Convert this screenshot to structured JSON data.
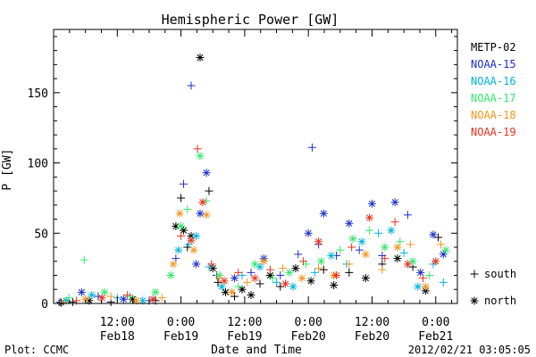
{
  "chart_data": {
    "type": "scatter",
    "title": "Hemispheric Power [GW]",
    "ylabel": "P [GW]",
    "xlabel": "Date and Time",
    "ylim": [
      0,
      195
    ],
    "xlim": [
      0,
      3.17
    ],
    "x_unit": "days from 2012-02-18 00:00 UT",
    "yticks": [
      {
        "value": 0,
        "label": "0"
      },
      {
        "value": 50,
        "label": "50"
      },
      {
        "value": 100,
        "label": "100"
      },
      {
        "value": 150,
        "label": "150"
      }
    ],
    "xticks": [
      {
        "value": 0.5,
        "label": "12:00",
        "sub": "Feb18"
      },
      {
        "value": 1.0,
        "label": "0:00",
        "sub": "Feb19"
      },
      {
        "value": 1.5,
        "label": "12:00",
        "sub": "Feb19"
      },
      {
        "value": 2.0,
        "label": "0:00",
        "sub": "Feb20"
      },
      {
        "value": 2.5,
        "label": "12:00",
        "sub": "Feb20"
      },
      {
        "value": 3.0,
        "label": "0:00",
        "sub": "Feb21"
      }
    ],
    "grid": false,
    "series": [
      {
        "name": "METP-02",
        "color": "#000000",
        "points": [
          {
            "x": 0.06,
            "y": 0.5,
            "m": "*"
          },
          {
            "x": 0.15,
            "y": 1,
            "m": "+"
          },
          {
            "x": 0.28,
            "y": 2,
            "m": "*"
          },
          {
            "x": 0.45,
            "y": 1,
            "m": "+"
          },
          {
            "x": 0.62,
            "y": 3,
            "m": "*"
          },
          {
            "x": 0.8,
            "y": 2,
            "m": "+"
          },
          {
            "x": 0.96,
            "y": 55,
            "m": "*"
          },
          {
            "x": 1.0,
            "y": 75,
            "m": "+"
          },
          {
            "x": 1.02,
            "y": 52,
            "m": "*"
          },
          {
            "x": 1.05,
            "y": 40,
            "m": "+"
          },
          {
            "x": 1.08,
            "y": 48,
            "m": "*"
          },
          {
            "x": 1.15,
            "y": 175,
            "m": "*"
          },
          {
            "x": 1.22,
            "y": 80,
            "m": "+"
          },
          {
            "x": 1.25,
            "y": 25,
            "m": "*"
          },
          {
            "x": 1.29,
            "y": 15,
            "m": "+"
          },
          {
            "x": 1.35,
            "y": 8,
            "m": "*"
          },
          {
            "x": 1.42,
            "y": 5,
            "m": "+"
          },
          {
            "x": 1.48,
            "y": 10,
            "m": "*"
          },
          {
            "x": 1.55,
            "y": 6,
            "m": "*"
          },
          {
            "x": 1.62,
            "y": 14,
            "m": "+"
          },
          {
            "x": 1.7,
            "y": 20,
            "m": "*"
          },
          {
            "x": 1.78,
            "y": 12,
            "m": "+"
          },
          {
            "x": 1.9,
            "y": 25,
            "m": "*"
          },
          {
            "x": 2.02,
            "y": 16,
            "m": "*"
          },
          {
            "x": 2.12,
            "y": 24,
            "m": "+"
          },
          {
            "x": 2.2,
            "y": 13,
            "m": "*"
          },
          {
            "x": 2.32,
            "y": 22,
            "m": "+"
          },
          {
            "x": 2.45,
            "y": 18,
            "m": "*"
          },
          {
            "x": 2.58,
            "y": 28,
            "m": "+"
          },
          {
            "x": 2.7,
            "y": 32,
            "m": "*"
          },
          {
            "x": 2.82,
            "y": 26,
            "m": "+"
          },
          {
            "x": 2.92,
            "y": 9,
            "m": "*"
          },
          {
            "x": 3.02,
            "y": 47,
            "m": "+"
          }
        ]
      },
      {
        "name": "NOAA-15",
        "color": "#1c2fcc",
        "points": [
          {
            "x": 0.05,
            "y": 1,
            "m": "+"
          },
          {
            "x": 0.22,
            "y": 8,
            "m": "*"
          },
          {
            "x": 0.35,
            "y": 5,
            "m": "+"
          },
          {
            "x": 0.55,
            "y": 3,
            "m": "*"
          },
          {
            "x": 0.75,
            "y": 2,
            "m": "+"
          },
          {
            "x": 0.96,
            "y": 32,
            "m": "+"
          },
          {
            "x": 1.02,
            "y": 85,
            "m": "+"
          },
          {
            "x": 1.08,
            "y": 155,
            "m": "+"
          },
          {
            "x": 1.12,
            "y": 28,
            "m": "*"
          },
          {
            "x": 1.15,
            "y": 64,
            "m": "*"
          },
          {
            "x": 1.2,
            "y": 93,
            "m": "*"
          },
          {
            "x": 1.28,
            "y": 20,
            "m": "+"
          },
          {
            "x": 1.42,
            "y": 18,
            "m": "*"
          },
          {
            "x": 1.55,
            "y": 22,
            "m": "+"
          },
          {
            "x": 1.65,
            "y": 32,
            "m": "*"
          },
          {
            "x": 1.78,
            "y": 20,
            "m": "+"
          },
          {
            "x": 1.92,
            "y": 35,
            "m": "+"
          },
          {
            "x": 2.0,
            "y": 50,
            "m": "*"
          },
          {
            "x": 2.03,
            "y": 111,
            "m": "+"
          },
          {
            "x": 2.08,
            "y": 42,
            "m": "+"
          },
          {
            "x": 2.12,
            "y": 64,
            "m": "*"
          },
          {
            "x": 2.22,
            "y": 34,
            "m": "+"
          },
          {
            "x": 2.32,
            "y": 57,
            "m": "*"
          },
          {
            "x": 2.4,
            "y": 38,
            "m": "+"
          },
          {
            "x": 2.5,
            "y": 71,
            "m": "*"
          },
          {
            "x": 2.58,
            "y": 34,
            "m": "+"
          },
          {
            "x": 2.68,
            "y": 72,
            "m": "*"
          },
          {
            "x": 2.78,
            "y": 63,
            "m": "+"
          },
          {
            "x": 2.88,
            "y": 22,
            "m": "*"
          },
          {
            "x": 2.98,
            "y": 49,
            "m": "*"
          },
          {
            "x": 3.06,
            "y": 35,
            "m": "*"
          }
        ]
      },
      {
        "name": "NOAA-16",
        "color": "#00b4dc",
        "points": [
          {
            "x": 0.1,
            "y": 2,
            "m": "*"
          },
          {
            "x": 0.3,
            "y": 6,
            "m": "*"
          },
          {
            "x": 0.5,
            "y": 4,
            "m": "+"
          },
          {
            "x": 0.7,
            "y": 2,
            "m": "*"
          },
          {
            "x": 0.98,
            "y": 38,
            "m": "*"
          },
          {
            "x": 1.06,
            "y": 42,
            "m": "+"
          },
          {
            "x": 1.12,
            "y": 48,
            "m": "*"
          },
          {
            "x": 1.22,
            "y": 26,
            "m": "+"
          },
          {
            "x": 1.32,
            "y": 12,
            "m": "*"
          },
          {
            "x": 1.48,
            "y": 20,
            "m": "+"
          },
          {
            "x": 1.62,
            "y": 26,
            "m": "*"
          },
          {
            "x": 1.75,
            "y": 15,
            "m": "+"
          },
          {
            "x": 1.88,
            "y": 12,
            "m": "*"
          },
          {
            "x": 2.05,
            "y": 22,
            "m": "+"
          },
          {
            "x": 2.18,
            "y": 34,
            "m": "*"
          },
          {
            "x": 2.3,
            "y": 28,
            "m": "+"
          },
          {
            "x": 2.42,
            "y": 44,
            "m": "*"
          },
          {
            "x": 2.55,
            "y": 50,
            "m": "+"
          },
          {
            "x": 2.65,
            "y": 52,
            "m": "*"
          },
          {
            "x": 2.75,
            "y": 36,
            "m": "+"
          },
          {
            "x": 2.86,
            "y": 12,
            "m": "*"
          },
          {
            "x": 2.98,
            "y": 28,
            "m": "+"
          },
          {
            "x": 3.06,
            "y": 15,
            "m": "+"
          }
        ]
      },
      {
        "name": "NOAA-17",
        "color": "#33e86a",
        "points": [
          {
            "x": 0.12,
            "y": 4,
            "m": "+"
          },
          {
            "x": 0.24,
            "y": 31,
            "m": "+"
          },
          {
            "x": 0.4,
            "y": 8,
            "m": "*"
          },
          {
            "x": 0.6,
            "y": 5,
            "m": "+"
          },
          {
            "x": 0.8,
            "y": 8,
            "m": "*"
          },
          {
            "x": 0.92,
            "y": 20,
            "m": "*"
          },
          {
            "x": 1.0,
            "y": 55,
            "m": "*"
          },
          {
            "x": 1.05,
            "y": 67,
            "m": "+"
          },
          {
            "x": 1.15,
            "y": 105,
            "m": "*"
          },
          {
            "x": 1.2,
            "y": 73,
            "m": "+"
          },
          {
            "x": 1.3,
            "y": 20,
            "m": "*"
          },
          {
            "x": 1.45,
            "y": 12,
            "m": "+"
          },
          {
            "x": 1.58,
            "y": 28,
            "m": "*"
          },
          {
            "x": 1.72,
            "y": 18,
            "m": "+"
          },
          {
            "x": 1.85,
            "y": 22,
            "m": "*"
          },
          {
            "x": 1.98,
            "y": 28,
            "m": "+"
          },
          {
            "x": 2.1,
            "y": 30,
            "m": "*"
          },
          {
            "x": 2.25,
            "y": 38,
            "m": "+"
          },
          {
            "x": 2.35,
            "y": 46,
            "m": "*"
          },
          {
            "x": 2.48,
            "y": 52,
            "m": "+"
          },
          {
            "x": 2.6,
            "y": 40,
            "m": "*"
          },
          {
            "x": 2.72,
            "y": 44,
            "m": "+"
          },
          {
            "x": 2.82,
            "y": 30,
            "m": "*"
          },
          {
            "x": 2.95,
            "y": 20,
            "m": "+"
          },
          {
            "x": 3.08,
            "y": 38,
            "m": "*"
          }
        ]
      },
      {
        "name": "NOAA-18",
        "color": "#f0961e",
        "points": [
          {
            "x": 0.08,
            "y": 1,
            "m": "+"
          },
          {
            "x": 0.25,
            "y": 3,
            "m": "*"
          },
          {
            "x": 0.45,
            "y": 5,
            "m": "+"
          },
          {
            "x": 0.65,
            "y": 2,
            "m": "*"
          },
          {
            "x": 0.85,
            "y": 4,
            "m": "+"
          },
          {
            "x": 0.94,
            "y": 28,
            "m": "*"
          },
          {
            "x": 0.99,
            "y": 64,
            "m": "*"
          },
          {
            "x": 1.1,
            "y": 38,
            "m": "*"
          },
          {
            "x": 1.2,
            "y": 63,
            "m": "*"
          },
          {
            "x": 1.3,
            "y": 18,
            "m": "+"
          },
          {
            "x": 1.4,
            "y": 8,
            "m": "*"
          },
          {
            "x": 1.52,
            "y": 15,
            "m": "+"
          },
          {
            "x": 1.65,
            "y": 30,
            "m": "*"
          },
          {
            "x": 1.8,
            "y": 25,
            "m": "+"
          },
          {
            "x": 1.95,
            "y": 18,
            "m": "*"
          },
          {
            "x": 2.08,
            "y": 25,
            "m": "+"
          },
          {
            "x": 2.2,
            "y": 20,
            "m": "*"
          },
          {
            "x": 2.32,
            "y": 28,
            "m": "+"
          },
          {
            "x": 2.45,
            "y": 35,
            "m": "*"
          },
          {
            "x": 2.58,
            "y": 24,
            "m": "+"
          },
          {
            "x": 2.7,
            "y": 40,
            "m": "*"
          },
          {
            "x": 2.8,
            "y": 42,
            "m": "+"
          },
          {
            "x": 2.92,
            "y": 12,
            "m": "*"
          },
          {
            "x": 3.04,
            "y": 42,
            "m": "+"
          }
        ]
      },
      {
        "name": "NOAA-19",
        "color": "#e8321c",
        "points": [
          {
            "x": 0.18,
            "y": 2,
            "m": "+"
          },
          {
            "x": 0.38,
            "y": 4,
            "m": "*"
          },
          {
            "x": 0.58,
            "y": 6,
            "m": "+"
          },
          {
            "x": 0.78,
            "y": 3,
            "m": "*"
          },
          {
            "x": 1.0,
            "y": 48,
            "m": "+"
          },
          {
            "x": 1.08,
            "y": 45,
            "m": "*"
          },
          {
            "x": 1.13,
            "y": 110,
            "m": "+"
          },
          {
            "x": 1.17,
            "y": 72,
            "m": "*"
          },
          {
            "x": 1.24,
            "y": 28,
            "m": "+"
          },
          {
            "x": 1.34,
            "y": 16,
            "m": "*"
          },
          {
            "x": 1.45,
            "y": 22,
            "m": "+"
          },
          {
            "x": 1.58,
            "y": 18,
            "m": "*"
          },
          {
            "x": 1.7,
            "y": 24,
            "m": "+"
          },
          {
            "x": 1.82,
            "y": 14,
            "m": "*"
          },
          {
            "x": 1.96,
            "y": 30,
            "m": "+"
          },
          {
            "x": 2.08,
            "y": 44,
            "m": "*"
          },
          {
            "x": 2.22,
            "y": 20,
            "m": "*"
          },
          {
            "x": 2.34,
            "y": 40,
            "m": "+"
          },
          {
            "x": 2.48,
            "y": 61,
            "m": "*"
          },
          {
            "x": 2.6,
            "y": 32,
            "m": "+"
          },
          {
            "x": 2.68,
            "y": 58,
            "m": "+"
          },
          {
            "x": 2.78,
            "y": 28,
            "m": "*"
          },
          {
            "x": 2.9,
            "y": 18,
            "m": "+"
          },
          {
            "x": 3.0,
            "y": 30,
            "m": "*"
          }
        ]
      }
    ],
    "marker_legend": [
      {
        "marker": "+",
        "label": "south"
      },
      {
        "marker": "*",
        "label": "north"
      }
    ]
  },
  "footer": {
    "plot_credit": "Plot: CCMC",
    "timestamp": "2012/02/21 03:05:05"
  }
}
